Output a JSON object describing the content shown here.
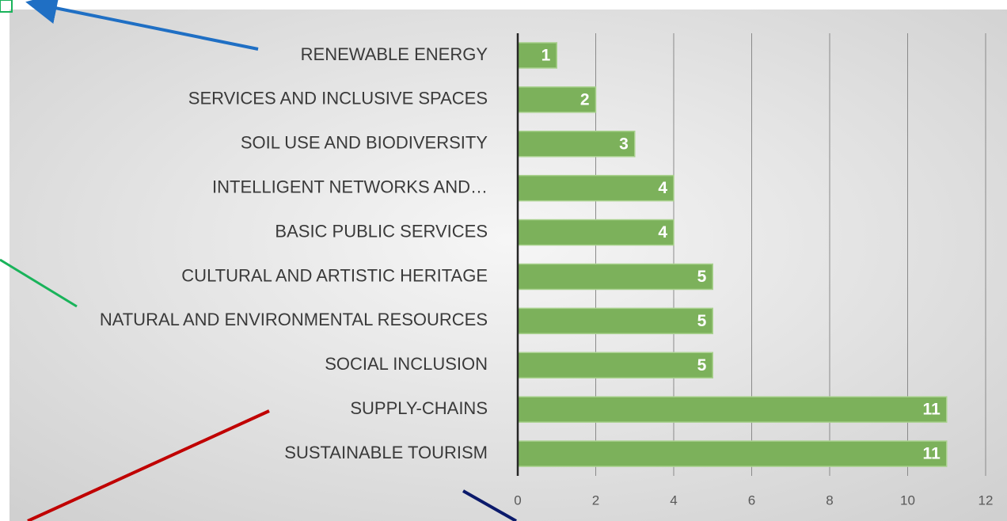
{
  "chart_data": {
    "type": "barh",
    "categories": [
      "RENEWABLE ENERGY",
      "SERVICES AND INCLUSIVE SPACES",
      "SOIL USE AND BIODIVERSITY",
      "INTELLIGENT NETWORKS AND…",
      "BASIC PUBLIC SERVICES",
      "CULTURAL AND ARTISTIC HERITAGE",
      "NATURAL AND ENVIRONMENTAL RESOURCES",
      "SOCIAL INCLUSION",
      "SUPPLY-CHAINS",
      "SUSTAINABLE TOURISM"
    ],
    "values": [
      1,
      2,
      3,
      4,
      4,
      5,
      5,
      5,
      11,
      11
    ],
    "color": "#7cb15b",
    "xlim": [
      0,
      12
    ],
    "xticks": [
      0,
      2,
      4,
      6,
      8,
      10,
      12
    ],
    "grid": true
  }
}
